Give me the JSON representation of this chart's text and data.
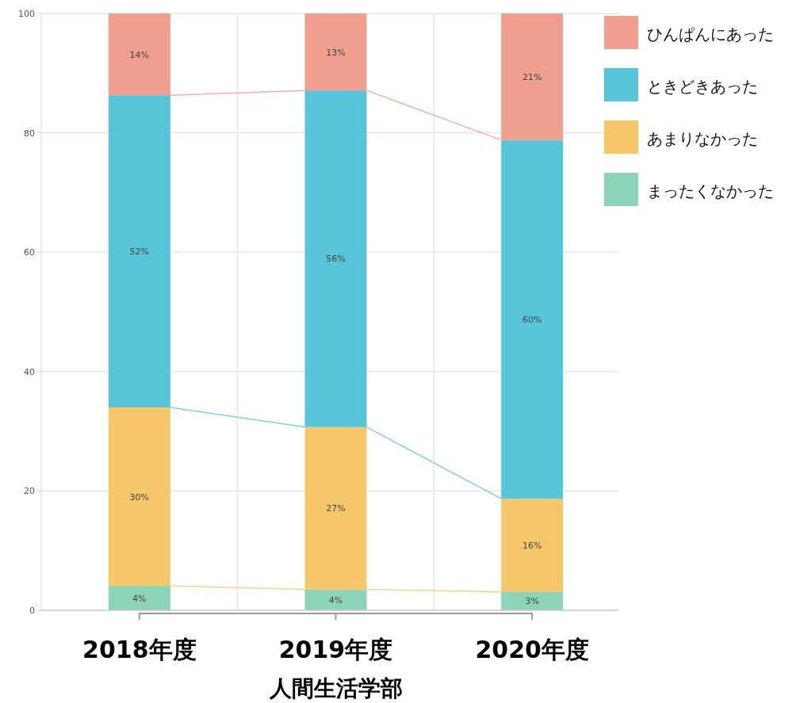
{
  "chart_data": {
    "type": "bar",
    "stacked": true,
    "categories": [
      "2018年度",
      "2019年度",
      "2020年度"
    ],
    "xlabel": "人間生活学部",
    "ylim": [
      0,
      100
    ],
    "yticks": [
      0,
      20,
      40,
      60,
      80,
      100
    ],
    "grid": true,
    "legend": "top right",
    "series": [
      {
        "name": "まったくなかった",
        "color": "#8dd3b7",
        "values": [
          4.1,
          3.5,
          3.1
        ],
        "value_labels": [
          "4%",
          "4%",
          "3%"
        ]
      },
      {
        "name": "あまりなかった",
        "color": "#f5c76a",
        "values": [
          29.9,
          27.2,
          15.6
        ],
        "value_labels": [
          "30%",
          "27%",
          "16%"
        ]
      },
      {
        "name": "ときどきあった",
        "color": "#57c4da",
        "values": [
          52.3,
          56.4,
          60.1
        ],
        "value_labels": [
          "52%",
          "56%",
          "60%"
        ]
      },
      {
        "name": "ひんぱんにあった",
        "color": "#f09e8f",
        "values": [
          13.7,
          12.9,
          21.2
        ],
        "value_labels": [
          "14%",
          "13%",
          "21%"
        ]
      }
    ]
  }
}
